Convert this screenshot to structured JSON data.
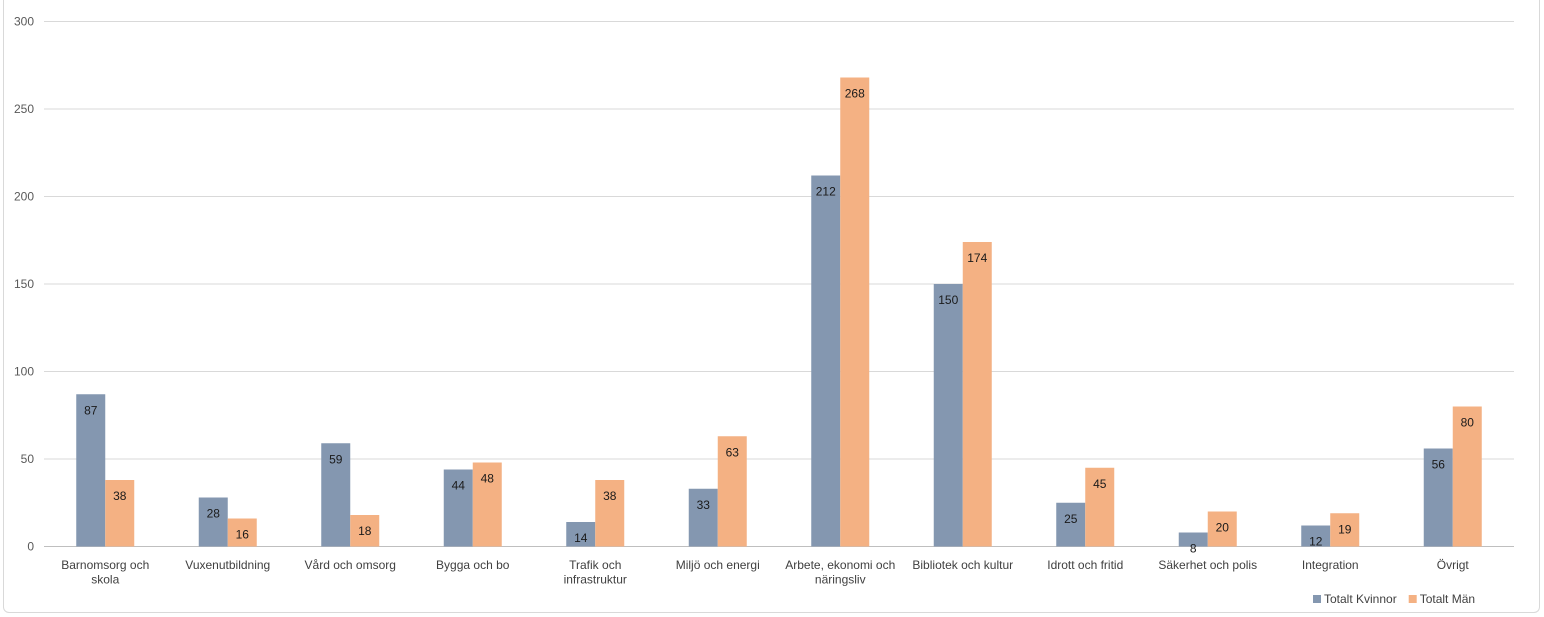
{
  "chart_data": {
    "type": "bar",
    "categories": [
      [
        "Barnomsorg och",
        "skola"
      ],
      [
        "Vuxenutbildning"
      ],
      [
        "Vård och omsorg"
      ],
      [
        "Bygga och bo"
      ],
      [
        "Trafik och",
        "infrastruktur"
      ],
      [
        "Miljö och energi"
      ],
      [
        "Arbete, ekonomi och",
        "näringsliv"
      ],
      [
        "Bibliotek och kultur"
      ],
      [
        "Idrott och fritid"
      ],
      [
        "Säkerhet och polis"
      ],
      [
        "Integration"
      ],
      [
        "Övrigt"
      ]
    ],
    "series": [
      {
        "name": "Totalt Kvinnor",
        "color": "#8497b0",
        "values": [
          87,
          28,
          59,
          44,
          14,
          33,
          212,
          150,
          25,
          8,
          12,
          56
        ]
      },
      {
        "name": "Totalt Män",
        "color": "#f4b183",
        "values": [
          38,
          16,
          18,
          48,
          38,
          63,
          268,
          174,
          45,
          20,
          19,
          80
        ]
      }
    ],
    "ylim": [
      0,
      300
    ],
    "yticks": [
      0,
      50,
      100,
      150,
      200,
      250,
      300
    ],
    "grid": true,
    "legend_position": "bottom-right",
    "data_labels": true
  },
  "colors": {
    "gridline": "#d9d9d9",
    "axis": "#bfbfbf"
  }
}
